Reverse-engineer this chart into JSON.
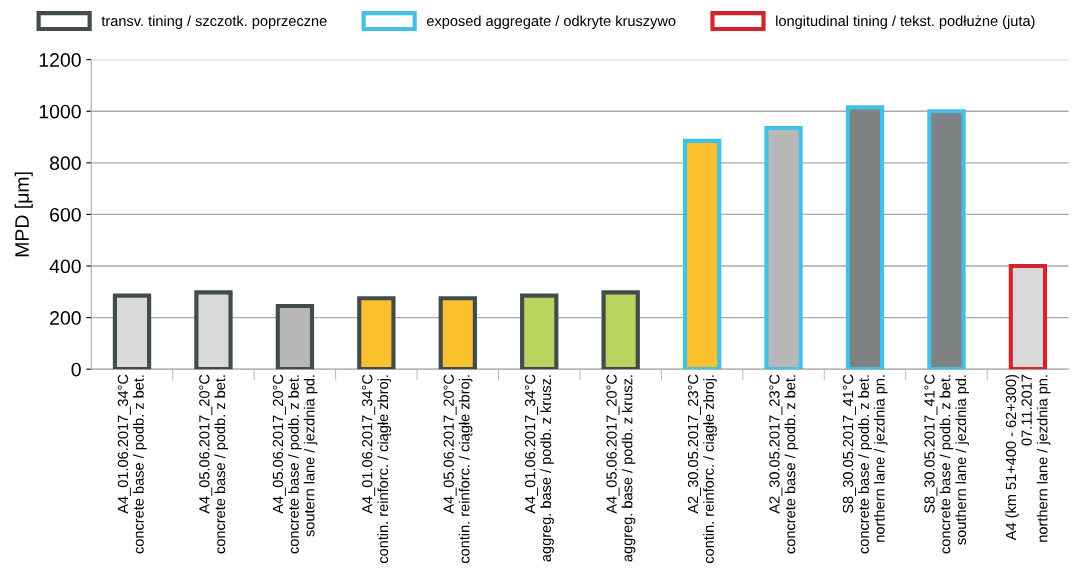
{
  "chart_data": {
    "type": "bar",
    "ylabel": "MPD [μm]",
    "categories": [
      "A4_01.06.2017_34°C\nconcrete base / podb. z bet.",
      "A4_05.06.2017_20°C\nconcrete base / podb. z bet.",
      "A4_05.06.2017_20°C\nconcrete base / podb. z bet.\nsoutern lane / jezdnia pd.",
      "A4_01.06.2017_34°C\ncontin. reinforc. / ciągłe zbroj.",
      "A4_05.06.2017_20°C\ncontin. reinforc. / ciągłe zbroj.",
      "A4_01.06.2017_34°C\naggreg. base / podb. z krusz.",
      "A4_05.06.2017_20°C\naggreg. base / podb. z krusz.",
      "A2_30.05.2017_23°C\ncontin. reinforc. / ciągłe zbroj.",
      "A2_30.05.2017_23°C\nconcrete base / podb. z bet.",
      "S8_30.05.2017_41°C\nconcrete base / podb. z bet.\nnorthern lane / jezdnia pn.",
      "S8_30.05.2017_41°C\nconcrete base / podb. z bet.\nsouthern lane / jezdnia pd.",
      "A4 (km 51+400 - 62+300)\n07.11.2017\nnorthern lane / jezdnia pn."
    ],
    "series": [
      {
        "name": "transv. tining / szczotk. poprzeczne",
        "color": "#424c4c",
        "values": [
          285,
          298,
          245,
          275,
          275,
          285,
          298,
          null,
          null,
          null,
          null,
          null
        ],
        "colors": [
          "#d9d9d9",
          "#d9d9d9",
          "#b8b8b8",
          "#fbc02d",
          "#fbc02d",
          "#bcd35f",
          "#bcd35f",
          null,
          null,
          null,
          null,
          null
        ]
      },
      {
        "name": "exposed aggregate / odkryte kruszywo",
        "color": "#42c0e6",
        "values": [
          null,
          null,
          null,
          null,
          null,
          null,
          null,
          885,
          935,
          1015,
          1000,
          null
        ],
        "colors": [
          null,
          null,
          null,
          null,
          null,
          null,
          null,
          "#fbc02d",
          "#b8b8b8",
          "#7f8282",
          "#7f8282",
          null
        ]
      },
      {
        "name": "longitudinal tining / tekst. podłużne (juta)",
        "color": "#d3232e",
        "values": [
          null,
          null,
          null,
          null,
          null,
          null,
          null,
          null,
          null,
          null,
          null,
          400
        ],
        "colors": [
          null,
          null,
          null,
          null,
          null,
          null,
          null,
          null,
          null,
          null,
          null,
          "#d9d9d9"
        ]
      }
    ],
    "ylim": [
      0,
      1200
    ],
    "yticks": [
      0,
      200,
      400,
      600,
      800,
      1000,
      1200
    ],
    "grid": "y",
    "legend": "top"
  }
}
